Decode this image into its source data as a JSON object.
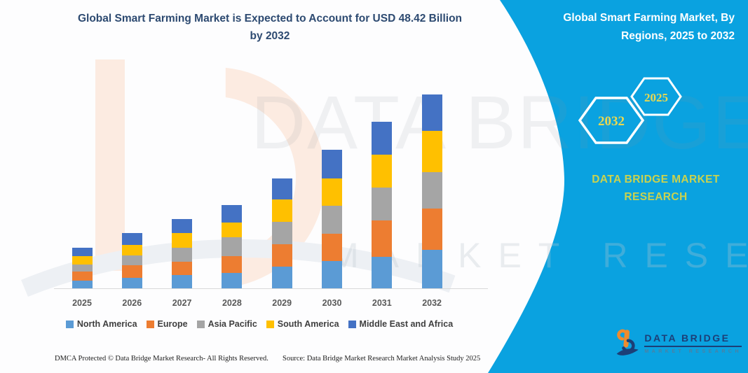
{
  "title": {
    "line1": "Global Smart Farming Market is Expected to Account for USD 48.42 Billion",
    "line2": "by 2032"
  },
  "right_panel": {
    "heading_line1": "Global Smart Farming Market, By",
    "heading_line2": "Regions, 2025 to 2032",
    "hexagon_back_year": "2032",
    "hexagon_front_year": "2025",
    "brand_text": "DATA BRIDGE MARKET RESEARCH",
    "logo": {
      "title": "DATA BRIDGE",
      "subtitle": "MARKET RESEARCH"
    }
  },
  "watermark": {
    "line1": "DATA BRIDGE",
    "line2": "MARKET RESEARCH"
  },
  "footer": {
    "dmca": "DMCA Protected © Data Bridge Market Research-  All Rights Reserved.",
    "source": "Source: Data Bridge Market Research  Market Analysis Study 2025"
  },
  "colors": {
    "panel_teal": "#0aa2e0",
    "hexagon_year_yellow": "#e9d850",
    "brand_yellow_green": "#c9d24f",
    "title_navy": "#2d4a71",
    "logo_navy": "#1c3f77",
    "logo_orange": "#ef8b2d",
    "axis_gray": "#d9d9d9"
  },
  "chart_data": {
    "type": "bar",
    "subtype": "stacked",
    "title": "Global Smart Farming Market is Expected to Account for USD 48.42 Billion by 2032",
    "unit": "USD Billion",
    "categories": [
      "2025",
      "2026",
      "2027",
      "2028",
      "2029",
      "2030",
      "2031",
      "2032"
    ],
    "series": [
      {
        "name": "North America",
        "color": "#5B9BD5",
        "values": [
          1.9,
          2.7,
          3.3,
          3.9,
          5.5,
          6.8,
          7.9,
          9.6
        ]
      },
      {
        "name": "Europe",
        "color": "#ED7D31",
        "values": [
          2.3,
          3.0,
          3.4,
          4.2,
          5.6,
          6.8,
          9.0,
          10.3
        ]
      },
      {
        "name": "Asia Pacific",
        "color": "#A5A5A5",
        "values": [
          1.8,
          2.5,
          3.4,
          4.6,
          5.5,
          7.0,
          8.2,
          9.2
        ]
      },
      {
        "name": "South America",
        "color": "#FFC000",
        "values": [
          2.0,
          2.7,
          3.8,
          3.8,
          5.6,
          6.9,
          8.3,
          10.2
        ]
      },
      {
        "name": "Middle East and Africa",
        "color": "#4472C4",
        "values": [
          2.2,
          2.9,
          3.5,
          4.4,
          5.2,
          7.1,
          8.2,
          9.1
        ]
      }
    ],
    "totals_by_year": [
      10.2,
      13.8,
      17.4,
      20.9,
      27.4,
      34.6,
      41.6,
      48.42
    ],
    "xlabel": "",
    "ylabel": "",
    "ylim": [
      0,
      50
    ],
    "y_axis_visible": false,
    "gridlines": false,
    "legend_position": "bottom"
  }
}
